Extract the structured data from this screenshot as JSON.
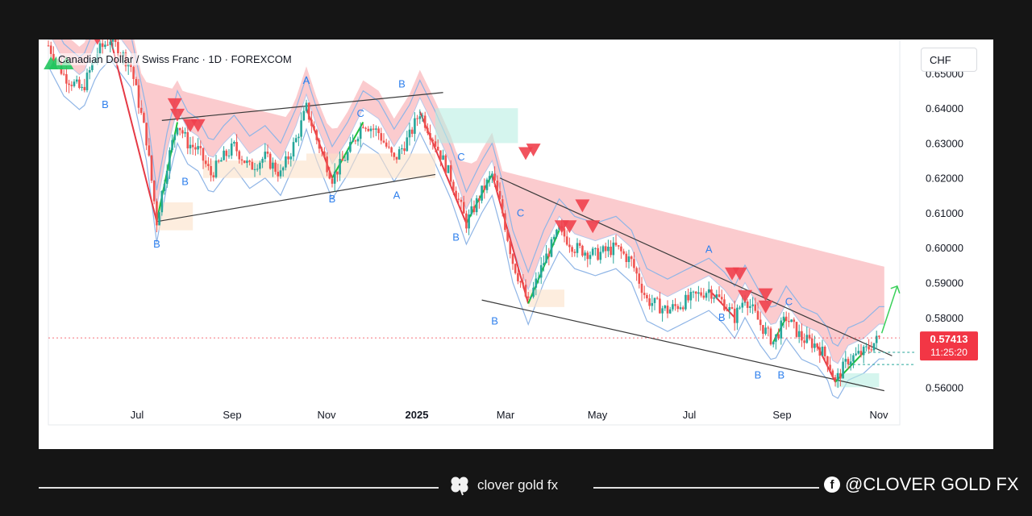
{
  "header": {
    "title": "Canadian Dollar / Swiss Franc · 1D · FOREXCOM",
    "currency": "CHF"
  },
  "chart_data": {
    "type": "candlestick",
    "y_axis": {
      "ticks": [
        0.65,
        0.64,
        0.63,
        0.62,
        0.61,
        0.6,
        0.59,
        0.58,
        0.56
      ],
      "tick_labels": [
        "0.65000",
        "0.64000",
        "0.63000",
        "0.62000",
        "0.61000",
        "0.60000",
        "0.59000",
        "0.58000",
        "0.56000"
      ],
      "ylim": [
        0.5492,
        0.6597
      ]
    },
    "x_axis": {
      "labels": [
        "Jul",
        "Sep",
        "Nov",
        "2025",
        "Mar",
        "May",
        "Jul",
        "Sep",
        "Nov"
      ],
      "bold_label": "2025"
    },
    "last_price": {
      "value": 0.57413,
      "label": "0.57413",
      "countdown": "11:25:20"
    },
    "price_path": [
      {
        "t": 0,
        "p": 0.658
      },
      {
        "t": 6,
        "p": 0.6495
      },
      {
        "t": 13,
        "p": 0.645
      },
      {
        "t": 19,
        "p": 0.656
      },
      {
        "t": 24,
        "p": 0.66
      },
      {
        "t": 32,
        "p": 0.652
      },
      {
        "t": 38,
        "p": 0.631
      },
      {
        "t": 42,
        "p": 0.6075
      },
      {
        "t": 46,
        "p": 0.624
      },
      {
        "t": 50,
        "p": 0.636
      },
      {
        "t": 54,
        "p": 0.63
      },
      {
        "t": 58,
        "p": 0.628
      },
      {
        "t": 63,
        "p": 0.621
      },
      {
        "t": 68,
        "p": 0.626
      },
      {
        "t": 72,
        "p": 0.629
      },
      {
        "t": 78,
        "p": 0.623
      },
      {
        "t": 84,
        "p": 0.626
      },
      {
        "t": 90,
        "p": 0.621
      },
      {
        "t": 96,
        "p": 0.631
      },
      {
        "t": 100,
        "p": 0.64
      },
      {
        "t": 104,
        "p": 0.631
      },
      {
        "t": 110,
        "p": 0.62
      },
      {
        "t": 116,
        "p": 0.627
      },
      {
        "t": 122,
        "p": 0.636
      },
      {
        "t": 128,
        "p": 0.633
      },
      {
        "t": 134,
        "p": 0.625
      },
      {
        "t": 140,
        "p": 0.632
      },
      {
        "t": 144,
        "p": 0.639
      },
      {
        "t": 150,
        "p": 0.63
      },
      {
        "t": 156,
        "p": 0.62
      },
      {
        "t": 162,
        "p": 0.607
      },
      {
        "t": 168,
        "p": 0.616
      },
      {
        "t": 172,
        "p": 0.621
      },
      {
        "t": 176,
        "p": 0.61
      },
      {
        "t": 180,
        "p": 0.596
      },
      {
        "t": 186,
        "p": 0.584
      },
      {
        "t": 192,
        "p": 0.596
      },
      {
        "t": 198,
        "p": 0.605
      },
      {
        "t": 204,
        "p": 0.6
      },
      {
        "t": 212,
        "p": 0.598
      },
      {
        "t": 220,
        "p": 0.6
      },
      {
        "t": 226,
        "p": 0.596
      },
      {
        "t": 232,
        "p": 0.585
      },
      {
        "t": 240,
        "p": 0.582
      },
      {
        "t": 248,
        "p": 0.585
      },
      {
        "t": 256,
        "p": 0.588
      },
      {
        "t": 262,
        "p": 0.584
      },
      {
        "t": 266,
        "p": 0.58
      },
      {
        "t": 270,
        "p": 0.586
      },
      {
        "t": 276,
        "p": 0.578
      },
      {
        "t": 281,
        "p": 0.573
      },
      {
        "t": 286,
        "p": 0.58
      },
      {
        "t": 292,
        "p": 0.574
      },
      {
        "t": 298,
        "p": 0.572
      },
      {
        "t": 302,
        "p": 0.568
      },
      {
        "t": 305,
        "p": 0.5615
      },
      {
        "t": 310,
        "p": 0.568
      },
      {
        "t": 316,
        "p": 0.57
      },
      {
        "t": 322,
        "p": 0.5741
      }
    ],
    "trend_lines": [
      {
        "from": {
          "t": 42,
          "p": 0.6075
        },
        "to": {
          "t": 150,
          "p": 0.621
        }
      },
      {
        "from": {
          "t": 44,
          "p": 0.6365
        },
        "to": {
          "t": 153,
          "p": 0.6445
        }
      },
      {
        "from": {
          "t": 175,
          "p": 0.62
        },
        "to": {
          "t": 327,
          "p": 0.569
        }
      },
      {
        "from": {
          "t": 168,
          "p": 0.585
        },
        "to": {
          "t": 324,
          "p": 0.559
        }
      }
    ],
    "wave_labels": [
      {
        "text": "B",
        "t": 22,
        "p": 0.64,
        "color": "#2f80ed"
      },
      {
        "text": "B",
        "t": 42,
        "p": 0.6,
        "color": "#2f80ed"
      },
      {
        "text": "B",
        "t": 53,
        "p": 0.618,
        "color": "#2f80ed"
      },
      {
        "text": "A",
        "t": 100,
        "p": 0.647,
        "color": "#2f80ed"
      },
      {
        "text": "B",
        "t": 110,
        "p": 0.613,
        "color": "#2f80ed"
      },
      {
        "text": "C",
        "t": 121,
        "p": 0.6375,
        "color": "#2f80ed"
      },
      {
        "text": "B",
        "t": 137,
        "p": 0.646,
        "color": "#2f80ed"
      },
      {
        "text": "A",
        "t": 135,
        "p": 0.614,
        "color": "#2f80ed"
      },
      {
        "text": "C",
        "t": 160,
        "p": 0.625,
        "color": "#2f80ed"
      },
      {
        "text": "B",
        "t": 158,
        "p": 0.602,
        "color": "#2f80ed"
      },
      {
        "text": "B",
        "t": 173,
        "p": 0.578,
        "color": "#2f80ed"
      },
      {
        "text": "C",
        "t": 183,
        "p": 0.609,
        "color": "#2f80ed"
      },
      {
        "text": "A",
        "t": 256,
        "p": 0.5985,
        "color": "#2f80ed"
      },
      {
        "text": "B",
        "t": 261,
        "p": 0.579,
        "color": "#2f80ed"
      },
      {
        "text": "C",
        "t": 287,
        "p": 0.5835,
        "color": "#2f80ed"
      },
      {
        "text": "B",
        "t": 275,
        "p": 0.5625,
        "color": "#2f80ed"
      },
      {
        "text": "B",
        "t": 284,
        "p": 0.5625,
        "color": "#2f80ed"
      }
    ],
    "sell_signals": [
      {
        "t": 19,
        "p": 0.66
      },
      {
        "t": 49,
        "p": 0.641
      },
      {
        "t": 50,
        "p": 0.638
      },
      {
        "t": 55,
        "p": 0.635
      },
      {
        "t": 58,
        "p": 0.635
      },
      {
        "t": 185,
        "p": 0.627
      },
      {
        "t": 188,
        "p": 0.628
      },
      {
        "t": 199,
        "p": 0.606
      },
      {
        "t": 202,
        "p": 0.606
      },
      {
        "t": 207,
        "p": 0.612
      },
      {
        "t": 211,
        "p": 0.606
      },
      {
        "t": 265,
        "p": 0.5925
      },
      {
        "t": 268,
        "p": 0.5925
      },
      {
        "t": 270,
        "p": 0.586
      },
      {
        "t": 278,
        "p": 0.5865
      },
      {
        "t": 278,
        "p": 0.583
      }
    ],
    "buy_signals": [
      {
        "t": 1,
        "p": 0.653
      },
      {
        "t": 3,
        "p": 0.653
      },
      {
        "t": 7,
        "p": 0.653
      }
    ],
    "colors": {
      "up": "#26a69a",
      "down": "#ef5350",
      "cloud_red": "#f7a1a6",
      "band_blue": "#8fb5e6",
      "cloud_green": "#b9eee3",
      "cloud_orange": "#fbe1c8",
      "last_price_bg": "#f23645"
    }
  },
  "footer": {
    "brand": "clover gold fx",
    "social": "@CLOVER GOLD FX"
  }
}
